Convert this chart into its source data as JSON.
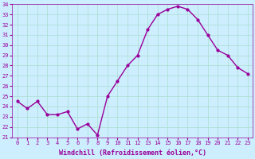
{
  "x": [
    0,
    1,
    2,
    3,
    4,
    5,
    6,
    7,
    8,
    9,
    10,
    11,
    12,
    13,
    14,
    15,
    16,
    17,
    18,
    19,
    20,
    21,
    22,
    23
  ],
  "y": [
    24.5,
    23.8,
    24.5,
    23.2,
    23.2,
    23.5,
    21.8,
    22.3,
    21.2,
    25.0,
    26.5,
    28.0,
    29.0,
    31.5,
    33.0,
    33.5,
    33.8,
    33.5,
    32.5,
    31.0,
    29.5,
    29.0,
    27.8,
    27.2
  ],
  "line_color": "#990099",
  "marker": "o",
  "marker_size": 2,
  "bg_color": "#cceeff",
  "grid_color": "#aaddcc",
  "xlabel": "Windchill (Refroidissement éolien,°C)",
  "xlabel_color": "#990099",
  "tick_color": "#990099",
  "ylim": [
    21,
    34
  ],
  "yticks": [
    21,
    22,
    23,
    24,
    25,
    26,
    27,
    28,
    29,
    30,
    31,
    32,
    33,
    34
  ],
  "xticks": [
    0,
    1,
    2,
    3,
    4,
    5,
    6,
    7,
    8,
    9,
    10,
    11,
    12,
    13,
    14,
    15,
    16,
    17,
    18,
    19,
    20,
    21,
    22,
    23
  ],
  "spine_color": "#990099",
  "line_width": 1.0,
  "tick_fontsize": 5.0,
  "xlabel_fontsize": 6.0
}
